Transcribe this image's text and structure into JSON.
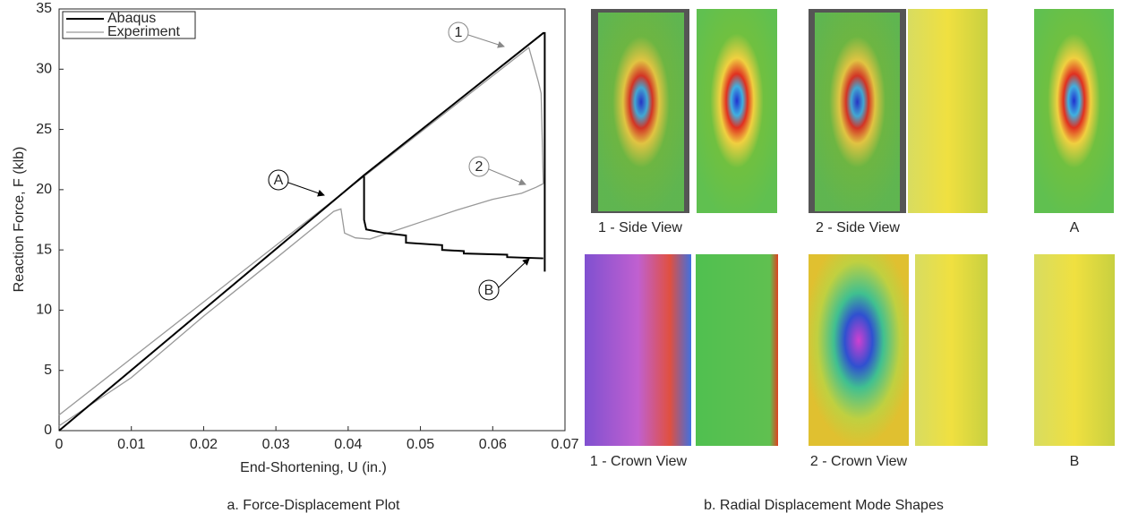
{
  "chart_data": {
    "type": "line",
    "xlabel": "End-Shortening, U (in.)",
    "ylabel": "Reaction Force, F (klb)",
    "xlim": [
      0,
      0.07
    ],
    "xticks": [
      0,
      0.01,
      0.02,
      0.03,
      0.04,
      0.05,
      0.06,
      0.07
    ],
    "ylim": [
      0,
      35
    ],
    "yticks": [
      0,
      5,
      10,
      15,
      20,
      25,
      30,
      35
    ],
    "legend": "upper left",
    "series": [
      {
        "name": "Abaqus",
        "color": "#000000",
        "x": [
          0,
          0.0422,
          0.067,
          0.0672,
          0.0672,
          null,
          0.0422,
          0.0422,
          0.0425,
          0.045,
          0.048,
          0.048,
          0.053,
          0.053,
          0.056,
          0.056,
          0.062,
          0.062,
          0.067
        ],
        "values": [
          0,
          21.2,
          33,
          33,
          13.2,
          null,
          21.1,
          17.5,
          16.7,
          16.4,
          16.2,
          15.6,
          15.4,
          15.0,
          14.9,
          14.7,
          14.6,
          14.4,
          14.3
        ]
      },
      {
        "name": "Experiment",
        "color": "#999999",
        "x": [
          0,
          0.065,
          0.0663,
          0.0667,
          0.067,
          null,
          0,
          0.01,
          0.02,
          0.03,
          0.038,
          0.039,
          0.0395,
          0.041,
          0.043,
          0.045,
          0.05,
          0.055,
          0.06,
          0.064,
          0.066,
          0.067
        ],
        "values": [
          1.3,
          31.8,
          29,
          28,
          20.5,
          null,
          0.4,
          4.4,
          9.5,
          14.3,
          18.2,
          18.4,
          16.4,
          16.0,
          15.9,
          16.3,
          17.3,
          18.3,
          19.2,
          19.7,
          20.2,
          20.5
        ]
      }
    ],
    "annotations": [
      {
        "label": "1",
        "color": "#888888"
      },
      {
        "label": "2",
        "color": "#888888"
      },
      {
        "label": "A",
        "color": "#000000"
      },
      {
        "label": "B",
        "color": "#000000"
      }
    ],
    "caption": "a. Force-Displacement Plot"
  },
  "figure": {
    "caption": "b. Radial Displacement Mode Shapes",
    "panel_labels": [
      "1 - Side View",
      "2 - Side View",
      "A",
      "1 - Crown View",
      "2 - Crown View",
      "B"
    ]
  }
}
